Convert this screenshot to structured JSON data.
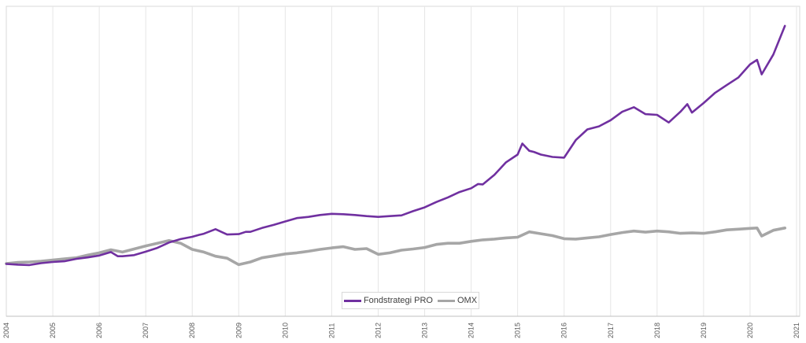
{
  "chart_data": {
    "type": "line",
    "title": "",
    "xlabel": "",
    "ylabel": "",
    "x_ticks": [
      "2004",
      "2005",
      "2006",
      "2007",
      "2008",
      "2009",
      "2010",
      "2011",
      "2012",
      "2013",
      "2014",
      "2015",
      "2016",
      "2017",
      "2018",
      "2019",
      "2020",
      "2021"
    ],
    "xlim": [
      2004,
      2021
    ],
    "ylim": [
      0,
      700
    ],
    "grid": "vertical",
    "legend_position": "bottom",
    "series": [
      {
        "name": "Fondstrategi PRO",
        "color": "#7030a0",
        "x": [
          2004.0,
          2004.25,
          2004.5,
          2004.75,
          2005.0,
          2005.25,
          2005.5,
          2005.75,
          2006.0,
          2006.25,
          2006.4,
          2006.5,
          2006.75,
          2007.0,
          2007.25,
          2007.5,
          2007.75,
          2008.0,
          2008.15,
          2008.25,
          2008.5,
          2008.75,
          2009.0,
          2009.15,
          2009.25,
          2009.5,
          2009.75,
          2010.0,
          2010.25,
          2010.5,
          2010.75,
          2011.0,
          2011.25,
          2011.5,
          2011.75,
          2012.0,
          2012.25,
          2012.5,
          2012.75,
          2013.0,
          2013.25,
          2013.5,
          2013.75,
          2014.0,
          2014.15,
          2014.25,
          2014.5,
          2014.75,
          2015.0,
          2015.1,
          2015.25,
          2015.35,
          2015.5,
          2015.75,
          2016.0,
          2016.25,
          2016.5,
          2016.75,
          2017.0,
          2017.25,
          2017.5,
          2017.75,
          2018.0,
          2018.25,
          2018.5,
          2018.65,
          2018.75,
          2019.0,
          2019.25,
          2019.5,
          2019.75,
          2020.0,
          2020.15,
          2020.25,
          2020.5,
          2020.75
        ],
        "values": [
          102,
          100,
          99,
          104,
          107,
          109,
          115,
          119,
          124,
          133,
          122,
          122,
          125,
          134,
          144,
          158,
          167,
          173,
          178,
          181,
          193,
          179,
          180,
          186,
          186,
          196,
          204,
          213,
          222,
          225,
          230,
          233,
          232,
          230,
          227,
          225,
          227,
          229,
          240,
          250,
          264,
          276,
          290,
          300,
          311,
          310,
          335,
          368,
          388,
          417,
          398,
          395,
          388,
          382,
          380,
          426,
          454,
          462,
          478,
          500,
          512,
          494,
          492,
          472,
          500,
          520,
          498,
          523,
          550,
          570,
          590,
          624,
          636,
          598,
          650,
          725
        ]
      },
      {
        "name": "OMX",
        "color": "#a6a6a6",
        "x": [
          2004.0,
          2004.25,
          2004.5,
          2004.75,
          2005.0,
          2005.25,
          2005.5,
          2005.75,
          2006.0,
          2006.25,
          2006.5,
          2006.75,
          2007.0,
          2007.25,
          2007.5,
          2007.75,
          2008.0,
          2008.25,
          2008.5,
          2008.75,
          2009.0,
          2009.25,
          2009.5,
          2009.75,
          2010.0,
          2010.25,
          2010.5,
          2010.75,
          2011.0,
          2011.25,
          2011.5,
          2011.75,
          2012.0,
          2012.25,
          2012.5,
          2012.75,
          2013.0,
          2013.25,
          2013.5,
          2013.75,
          2014.0,
          2014.25,
          2014.5,
          2014.75,
          2015.0,
          2015.25,
          2015.5,
          2015.75,
          2016.0,
          2016.25,
          2016.5,
          2016.75,
          2017.0,
          2017.25,
          2017.5,
          2017.75,
          2018.0,
          2018.25,
          2018.5,
          2018.75,
          2019.0,
          2019.25,
          2019.5,
          2019.75,
          2020.0,
          2020.15,
          2020.25,
          2020.5,
          2020.75
        ],
        "values": [
          103,
          106,
          107,
          109,
          112,
          115,
          118,
          125,
          131,
          139,
          133,
          141,
          149,
          156,
          163,
          156,
          140,
          133,
          122,
          117,
          100,
          107,
          118,
          123,
          128,
          131,
          135,
          140,
          144,
          147,
          140,
          142,
          127,
          131,
          138,
          141,
          145,
          153,
          156,
          156,
          161,
          165,
          167,
          170,
          172,
          186,
          181,
          176,
          168,
          167,
          170,
          173,
          179,
          184,
          188,
          185,
          188,
          186,
          182,
          183,
          182,
          186,
          191,
          193,
          195,
          196,
          175,
          190,
          196
        ]
      }
    ]
  }
}
